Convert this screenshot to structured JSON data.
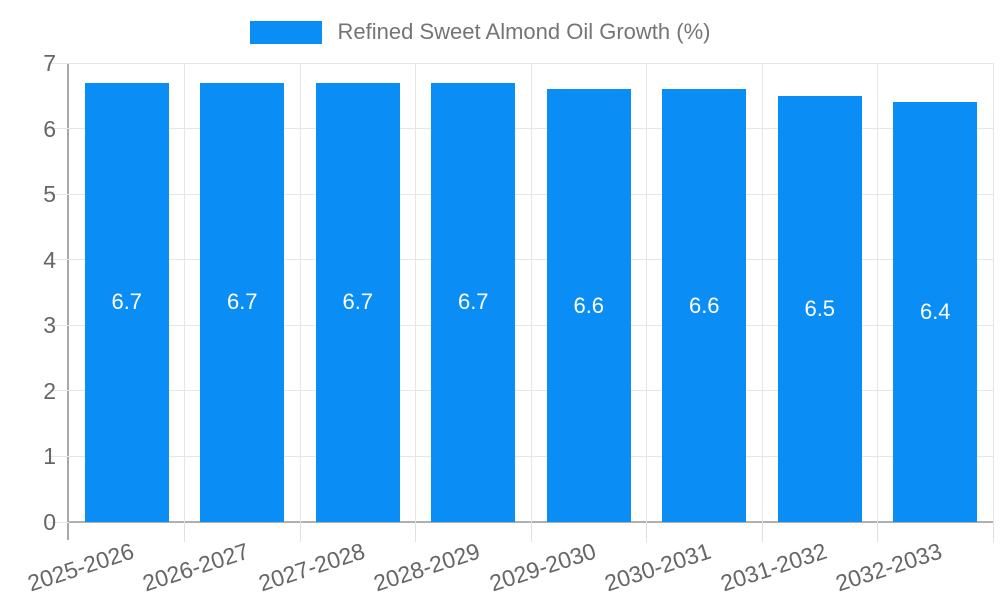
{
  "chart_data": {
    "type": "bar",
    "title": "Refined Sweet Almond Oil Growth (%)",
    "categories": [
      "2025-2026",
      "2026-2027",
      "2027-2028",
      "2028-2029",
      "2029-2030",
      "2030-2031",
      "2031-2032",
      "2032-2033"
    ],
    "values": [
      6.7,
      6.7,
      6.7,
      6.7,
      6.6,
      6.6,
      6.5,
      6.4
    ],
    "bar_labels": [
      "6.7",
      "6.7",
      "6.7",
      "6.7",
      "6.6",
      "6.6",
      "6.5",
      "6.4"
    ],
    "xlabel": "",
    "ylabel": "",
    "ylim": [
      0,
      7
    ],
    "yticks": [
      0,
      1,
      2,
      3,
      4,
      5,
      6,
      7
    ],
    "grid": true,
    "legend_position": "top",
    "colors": {
      "bar": "#0a8df5",
      "annotation_text": "#ffffff",
      "axis_text": "#666666",
      "legend_text": "#757575",
      "gridline": "#e6e6e6",
      "axis_line": "#b0b0b0"
    }
  }
}
